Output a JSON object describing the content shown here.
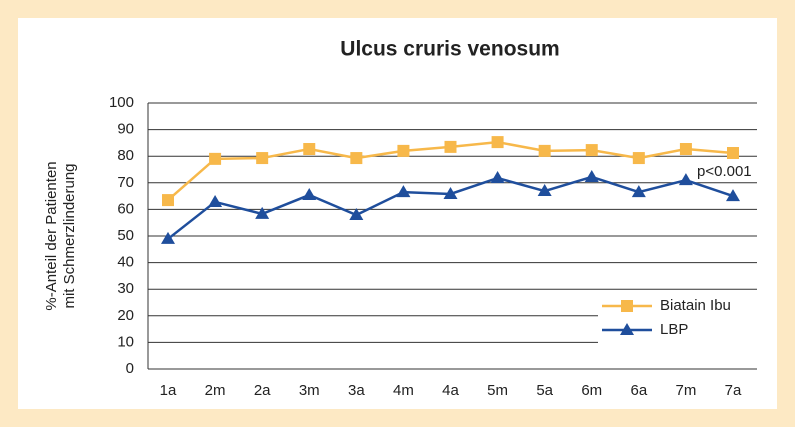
{
  "chart_data": {
    "type": "line",
    "title": "Ulcus cruris venosum",
    "ylabel": [
      "%-Anteil der Patienten",
      "mit Schmerzlinderung"
    ],
    "annotation": "p<0.001",
    "categories": [
      "1a",
      "2m",
      "2a",
      "3m",
      "3a",
      "4m",
      "4a",
      "5m",
      "5a",
      "6m",
      "6a",
      "7m",
      "7a"
    ],
    "series": [
      {
        "name": "Biatain Ibu",
        "color": "#f7b84a",
        "marker": "square",
        "values": [
          63.5,
          79,
          79.3,
          82.7,
          79.3,
          82,
          83.5,
          85.3,
          82,
          82.3,
          79.3,
          82.7,
          81.2
        ]
      },
      {
        "name": "LBP",
        "color": "#1f4e9c",
        "marker": "triangle",
        "values": [
          48.9,
          62.8,
          58.3,
          65.4,
          57.9,
          66.5,
          65.8,
          71.8,
          66.9,
          72.2,
          66.5,
          71,
          65
        ]
      }
    ],
    "ylim": [
      0,
      100
    ],
    "yticks": [
      0,
      10,
      20,
      30,
      40,
      50,
      60,
      70,
      80,
      90,
      100
    ],
    "grid": true,
    "legend": "lower right"
  }
}
